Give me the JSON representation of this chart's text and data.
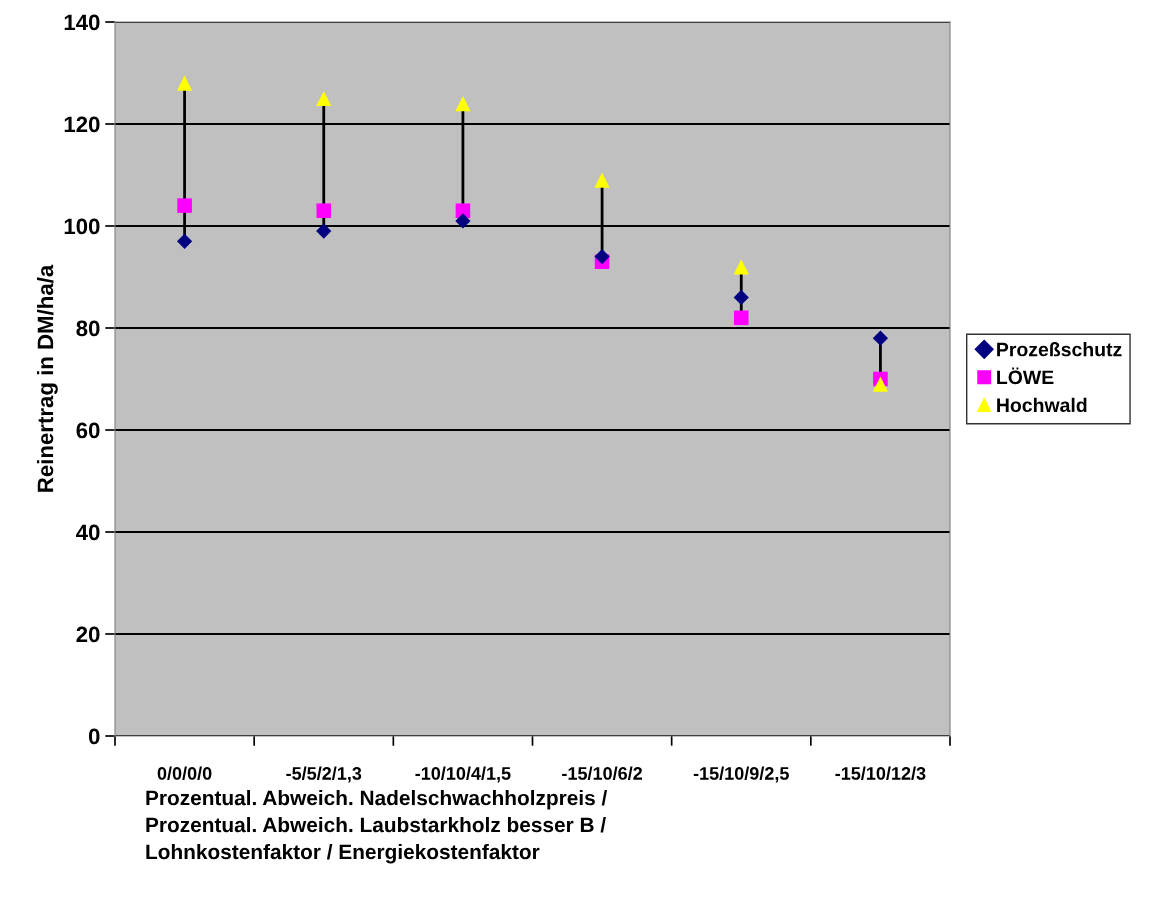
{
  "chart_data": {
    "type": "scatter",
    "categories": [
      "0/0/0/0",
      "-5/5/2/1,3",
      "-10/10/4/1,5",
      "-15/10/6/2",
      "-15/10/9/2,5",
      "-15/10/12/3"
    ],
    "series": [
      {
        "name": "Prozeßschutz",
        "color": "#000080",
        "marker": "diamond",
        "values": [
          97,
          99,
          101,
          94,
          86,
          78
        ]
      },
      {
        "name": "LÖWE",
        "color": "#ff00ff",
        "marker": "square",
        "values": [
          104,
          103,
          103,
          93,
          82,
          70
        ]
      },
      {
        "name": "Hochwald",
        "color": "#ffff00",
        "marker": "triangle",
        "values": [
          128,
          125,
          124,
          109,
          92,
          69
        ]
      }
    ],
    "ylabel": "Reinertrag in DM/ha/a",
    "xlabel": "Prozentual. Abweich. Nadelschwachholzpreis /\nProzentual. Abweich. Laubstarkholz besser B /\nLohnkostenfaktor / Energiekostenfaktor",
    "ylim": [
      0,
      140
    ],
    "yticks": [
      0,
      20,
      40,
      60,
      80,
      100,
      120,
      140
    ],
    "grid": "y",
    "legend": "right"
  }
}
